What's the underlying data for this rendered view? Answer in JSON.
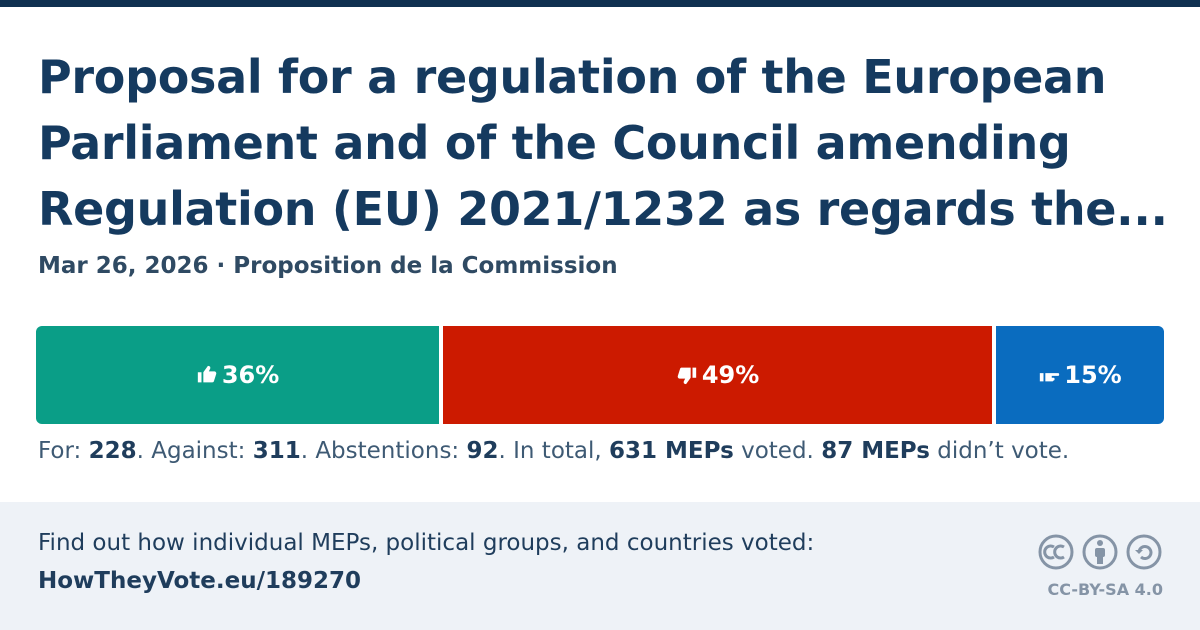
{
  "title": "Proposal for a regulation of the European Parliament and of the Council amending Regulation (EU) 2021/1232 as regards the...",
  "subtitle": "Mar 26, 2026 · Proposition de la Commission",
  "chart_data": {
    "type": "stacked-bar",
    "values": [
      36,
      49,
      15
    ],
    "value_labels": [
      "36%",
      "49%",
      "15%"
    ],
    "colors": [
      "#0a9e87",
      "#cc1a00",
      "#0a6cbf"
    ],
    "xlim": [
      0,
      100
    ]
  },
  "summary": [
    "For: ",
    "228",
    ". Against: ",
    "311",
    ". Abstentions: ",
    "92",
    ". In total, ",
    "631 MEPs",
    " voted. ",
    "87 MEPs",
    " didn’t vote."
  ],
  "footer": {
    "text": "Find out how individual MEPs, political groups, and countries voted:",
    "link": "HowTheyVote.eu/189270",
    "license": "CC-BY-SA 4.0"
  }
}
